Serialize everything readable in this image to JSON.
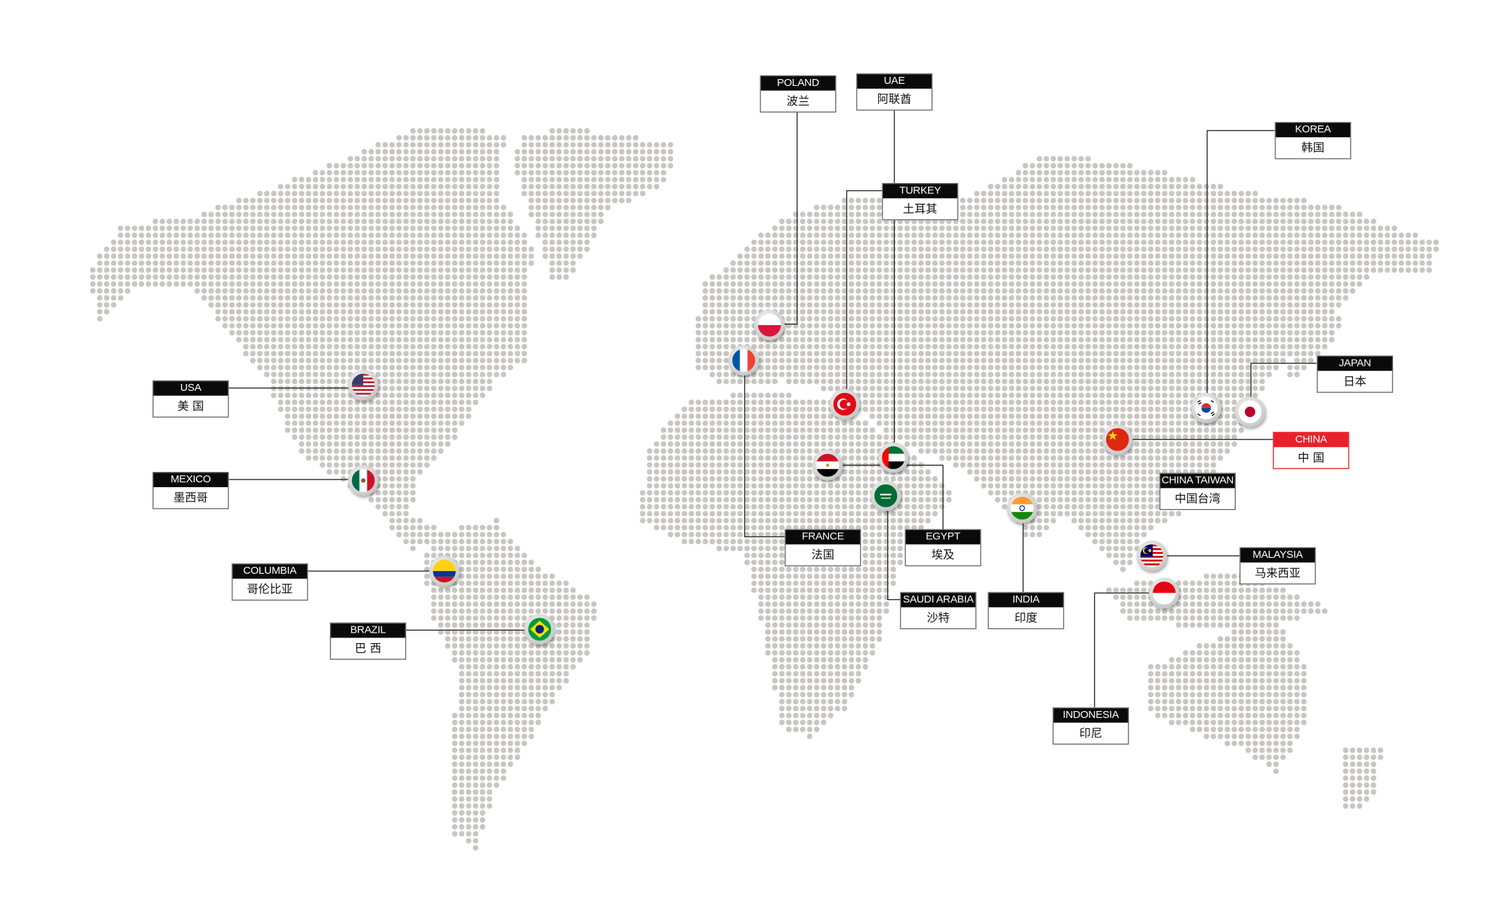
{
  "map": {
    "dot_color": "#c9c6c2",
    "line_color": "#222222",
    "highlight_color": "#e8202a"
  },
  "labels": [
    {
      "id": "poland",
      "en": "POLAND",
      "zh": "波兰",
      "flag_icon": "poland-flag-icon"
    },
    {
      "id": "uae",
      "en": "UAE",
      "zh": "阿联酋",
      "flag_icon": "uae-flag-icon"
    },
    {
      "id": "turkey",
      "en": "TURKEY",
      "zh": "土耳其",
      "flag_icon": "turkey-flag-icon"
    },
    {
      "id": "korea",
      "en": "KOREA",
      "zh": "韩国",
      "flag_icon": "korea-flag-icon"
    },
    {
      "id": "japan",
      "en": "JAPAN",
      "zh": "日本",
      "flag_icon": "japan-flag-icon"
    },
    {
      "id": "china",
      "en": "CHINA",
      "zh": "中 国",
      "flag_icon": "china-flag-icon",
      "highlight": true
    },
    {
      "id": "taiwan",
      "en": "CHINA TAIWAN",
      "zh": "中国台湾"
    },
    {
      "id": "malaysia",
      "en": "MALAYSIA",
      "zh": "马来西亚",
      "flag_icon": "malaysia-flag-icon"
    },
    {
      "id": "indonesia",
      "en": "INDONESIA",
      "zh": "印尼",
      "flag_icon": "indonesia-flag-icon"
    },
    {
      "id": "india",
      "en": "INDIA",
      "zh": "印度",
      "flag_icon": "india-flag-icon"
    },
    {
      "id": "saudi",
      "en": "SAUDI ARABIA",
      "zh": "沙特",
      "flag_icon": "saudi-arabia-flag-icon"
    },
    {
      "id": "egypt",
      "en": "EGYPT",
      "zh": "埃及",
      "flag_icon": "egypt-flag-icon"
    },
    {
      "id": "france",
      "en": "FRANCE",
      "zh": "法国",
      "flag_icon": "france-flag-icon"
    },
    {
      "id": "usa",
      "en": "USA",
      "zh": "美 国",
      "flag_icon": "usa-flag-icon"
    },
    {
      "id": "mexico",
      "en": "MEXICO",
      "zh": "墨西哥",
      "flag_icon": "mexico-flag-icon"
    },
    {
      "id": "columbia",
      "en": "COLUMBIA",
      "zh": "哥伦比亚",
      "flag_icon": "colombia-flag-icon"
    },
    {
      "id": "brazil",
      "en": "BRAZIL",
      "zh": "巴 西",
      "flag_icon": "brazil-flag-icon"
    }
  ]
}
